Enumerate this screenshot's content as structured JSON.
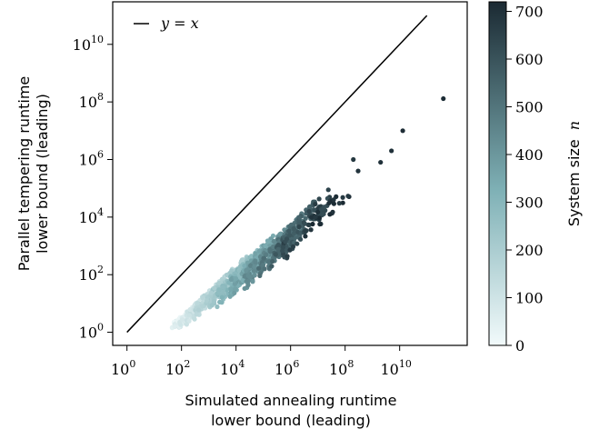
{
  "chart_data": {
    "type": "scatter",
    "title": "",
    "xlabel_lines": [
      "Simulated annealing runtime",
      "lower bound (leading)"
    ],
    "ylabel_lines": [
      "Parallel tempering runtime",
      "lower bound (leading)"
    ],
    "x_scale": "log",
    "y_scale": "log",
    "xlim": [
      0.3,
      3000000000000.0
    ],
    "ylim": [
      0.35,
      300000000000.0
    ],
    "x_ticks": [
      1,
      100,
      10000,
      1000000,
      100000000,
      10000000000
    ],
    "y_ticks": [
      1,
      100,
      10000,
      1000000,
      100000000,
      10000000000
    ],
    "x_tick_base": [
      "10",
      "10",
      "10",
      "10",
      "10",
      "10"
    ],
    "x_tick_exp": [
      "0",
      "2",
      "4",
      "6",
      "8",
      "10"
    ],
    "y_tick_base": [
      "10",
      "10",
      "10",
      "10",
      "10",
      "10"
    ],
    "y_tick_exp": [
      "0",
      "2",
      "4",
      "6",
      "8",
      "10"
    ],
    "grid": false,
    "legend": {
      "position": "top-left",
      "entries": [
        {
          "label": "y = x",
          "style": "line",
          "color": "#000000"
        }
      ]
    },
    "reference_line": {
      "label": "y = x",
      "x": [
        1,
        100000000000.0
      ],
      "y": [
        1,
        100000000000.0
      ]
    },
    "colorbar": {
      "label_text": "System size",
      "label_var": "n",
      "range": [
        0,
        720
      ],
      "ticks": [
        0,
        100,
        200,
        300,
        400,
        500,
        600,
        700
      ],
      "tick_labels": [
        "0",
        "100",
        "200",
        "300",
        "400",
        "500",
        "600",
        "700"
      ],
      "color_low": "#f2fafb",
      "color_mid": "#7fb1b6",
      "color_high": "#1b2a33"
    },
    "series": [
      {
        "point_color": "colormap by n",
        "point_groups": [
          {
            "n": 40,
            "x_range": [
              45,
              300
            ],
            "y_range": [
              1.6,
              6
            ],
            "count": 70
          },
          {
            "n": 70,
            "x_range": [
              80,
              800
            ],
            "y_range": [
              2,
              15
            ],
            "count": 80
          },
          {
            "n": 110,
            "x_range": [
              150,
              2500
            ],
            "y_range": [
              3,
              40
            ],
            "count": 90
          },
          {
            "n": 160,
            "x_range": [
              300,
              8000
            ],
            "y_range": [
              5,
              100
            ],
            "count": 100
          },
          {
            "n": 220,
            "x_range": [
              800,
              30000
            ],
            "y_range": [
              10,
              300
            ],
            "count": 110
          },
          {
            "n": 290,
            "x_range": [
              2000,
              100000
            ],
            "y_range": [
              15,
              600
            ],
            "count": 120
          },
          {
            "n": 360,
            "x_range": [
              6000,
              300000
            ],
            "y_range": [
              30,
              1500
            ],
            "count": 120
          },
          {
            "n": 430,
            "x_range": [
              20000,
              1000000
            ],
            "y_range": [
              60,
              3000
            ],
            "count": 110
          },
          {
            "n": 500,
            "x_range": [
              60000,
              3000000
            ],
            "y_range": [
              100,
              8000
            ],
            "count": 100
          },
          {
            "n": 570,
            "x_range": [
              200000,
              8000000
            ],
            "y_range": [
              300,
              20000
            ],
            "count": 80
          },
          {
            "n": 640,
            "x_range": [
              500000,
              30000000
            ],
            "y_range": [
              500,
              60000
            ],
            "count": 50
          },
          {
            "n": 700,
            "x_range": [
              3000000,
              200000000
            ],
            "y_range": [
              3000,
              100000
            ],
            "count": 25
          }
        ],
        "outliers": [
          {
            "x": 200000000,
            "y": 1000000,
            "n": 680
          },
          {
            "x": 300000000,
            "y": 400000,
            "n": 690
          },
          {
            "x": 2000000000,
            "y": 800000,
            "n": 700
          },
          {
            "x": 5000000000,
            "y": 2000000,
            "n": 700
          },
          {
            "x": 13000000000,
            "y": 10000000,
            "n": 710
          },
          {
            "x": 400000000000,
            "y": 130000000,
            "n": 715
          }
        ]
      }
    ]
  }
}
